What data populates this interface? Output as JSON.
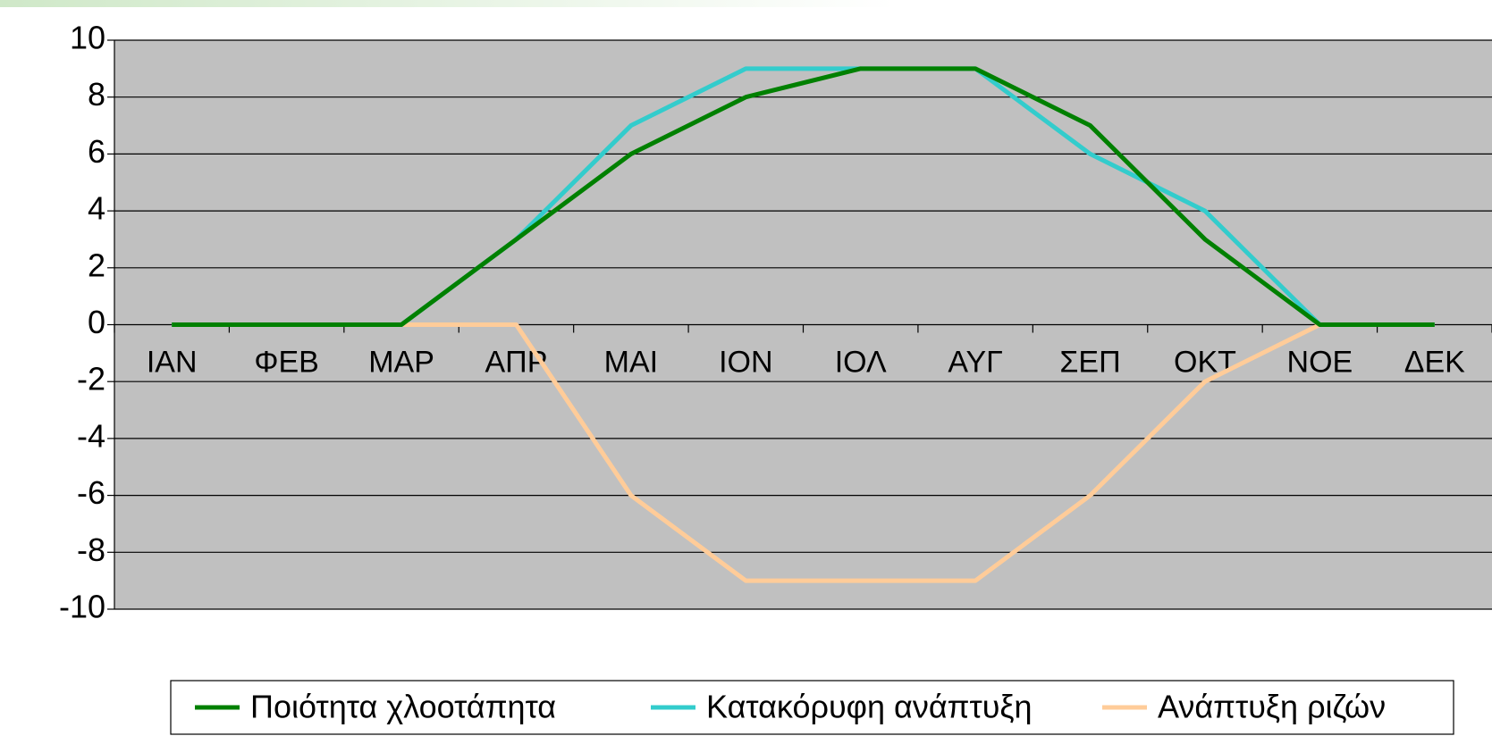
{
  "chart_data": {
    "type": "line",
    "categories": [
      "ΙΑΝ",
      "ΦΕΒ",
      "ΜΑΡ",
      "ΑΠΡ",
      "ΜΑΙ",
      "ΙΟΝ",
      "ΙΟΛ",
      "ΑΥΓ",
      "ΣΕΠ",
      "ΟΚΤ",
      "ΝΟΕ",
      "ΔΕΚ"
    ],
    "series": [
      {
        "name": "Ποιότητα χλοοτάπητα",
        "color": "#008000",
        "values": [
          0,
          0,
          0,
          3,
          6,
          8,
          9,
          9,
          7,
          3,
          0,
          0
        ]
      },
      {
        "name": "Κατακόρυφη ανάπτυξη",
        "color": "#33cccc",
        "values": [
          0,
          0,
          0,
          3,
          7,
          9,
          9,
          9,
          6,
          4,
          0,
          0
        ]
      },
      {
        "name": "Ανάπτυξη ριζών",
        "color": "#ffcc99",
        "values": [
          0,
          0,
          0,
          0,
          -6,
          -9,
          -9,
          -9,
          -6,
          -2,
          0,
          0
        ]
      }
    ],
    "ylim": [
      -10,
      10
    ],
    "yticks": [
      -10,
      -8,
      -6,
      -4,
      -2,
      0,
      2,
      4,
      6,
      8,
      10
    ],
    "grid": true,
    "legend": "bottom"
  }
}
